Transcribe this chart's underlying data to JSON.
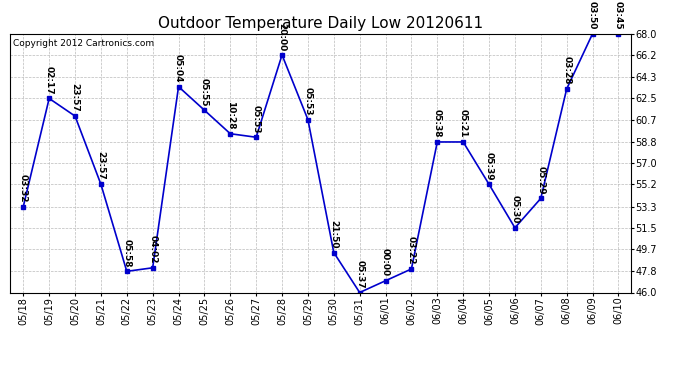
{
  "title": "Outdoor Temperature Daily Low 20120611",
  "copyright": "Copyright 2012 Cartronics.com",
  "background_color": "#ffffff",
  "line_color": "#0000cc",
  "marker_color": "#0000cc",
  "grid_color": "#bbbbbb",
  "dates": [
    "05/18",
    "05/19",
    "05/20",
    "05/21",
    "05/22",
    "05/23",
    "05/24",
    "05/25",
    "05/26",
    "05/27",
    "05/28",
    "05/29",
    "05/30",
    "05/31",
    "06/01",
    "06/02",
    "06/03",
    "06/04",
    "06/05",
    "06/06",
    "06/07",
    "06/08",
    "06/09",
    "06/10"
  ],
  "temperatures": [
    53.3,
    62.5,
    61.0,
    55.2,
    47.8,
    48.1,
    63.5,
    61.5,
    59.5,
    59.2,
    66.2,
    60.7,
    49.4,
    46.0,
    47.0,
    48.0,
    58.8,
    58.8,
    55.2,
    51.5,
    54.0,
    63.3,
    68.0,
    68.0
  ],
  "labels": [
    "03:32",
    "02:17",
    "23:57",
    "23:57",
    "05:58",
    "04:02",
    "05:04",
    "05:55",
    "10:28",
    "05:53",
    "20:00",
    "05:53",
    "21:50",
    "05:37",
    "00:00",
    "03:22",
    "05:38",
    "05:21",
    "05:39",
    "05:30",
    "05:29",
    "03:28",
    "03:50",
    "03:45"
  ],
  "ylim": [
    46.0,
    68.0
  ],
  "yticks": [
    46.0,
    47.8,
    49.7,
    51.5,
    53.3,
    55.2,
    57.0,
    58.8,
    60.7,
    62.5,
    64.3,
    66.2,
    68.0
  ],
  "title_fontsize": 11,
  "label_fontsize": 6.5,
  "tick_fontsize": 7,
  "copyright_fontsize": 6.5
}
